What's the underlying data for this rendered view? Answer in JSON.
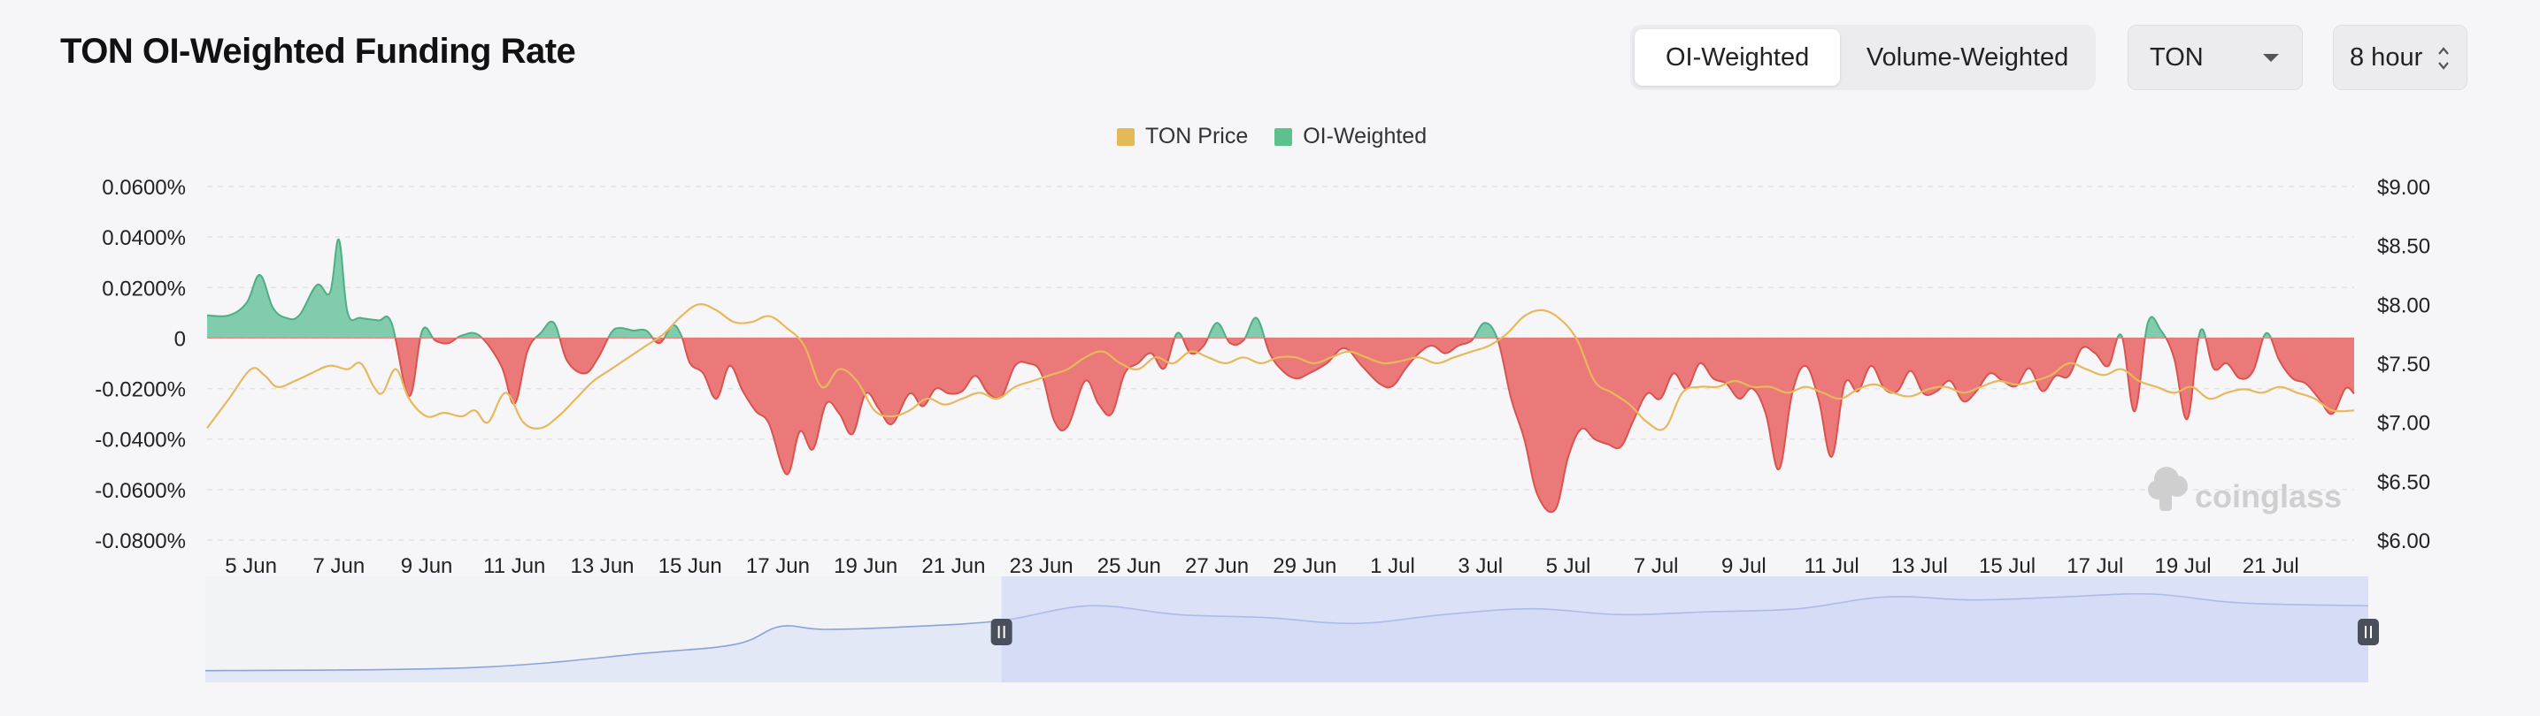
{
  "title": "TON OI-Weighted Funding Rate",
  "toggle": {
    "options": [
      "OI-Weighted",
      "Volume-Weighted"
    ],
    "active": 0
  },
  "symbol_select": {
    "value": "TON"
  },
  "interval_select": {
    "value": "8 hour"
  },
  "legend": [
    {
      "label": "TON Price",
      "color": "#e4b95a"
    },
    {
      "label": "OI-Weighted",
      "color": "#5fc08f"
    }
  ],
  "watermark": "coinglass",
  "colors": {
    "positive": "#6cc4a0",
    "negative": "#ea7272",
    "price": "#e8b85c",
    "navigator": "#8aa3d9"
  },
  "chart_data": {
    "type": "area",
    "title": "TON OI-Weighted Funding Rate",
    "y_left_ticks": [
      "0.0600%",
      "0.0400%",
      "0.0200%",
      "0",
      "-0.0200%",
      "-0.0400%",
      "-0.0600%",
      "-0.0800%"
    ],
    "y_right_ticks": [
      "$9.00",
      "$8.50",
      "$8.00",
      "$7.50",
      "$7.00",
      "$6.50",
      "$6.00"
    ],
    "x_ticks": [
      "5 Jun",
      "7 Jun",
      "9 Jun",
      "11 Jun",
      "13 Jun",
      "15 Jun",
      "17 Jun",
      "19 Jun",
      "21 Jun",
      "23 Jun",
      "25 Jun",
      "27 Jun",
      "29 Jun",
      "1 Jul",
      "3 Jul",
      "5 Jul",
      "7 Jul",
      "9 Jul",
      "11 Jul",
      "13 Jul",
      "15 Jul",
      "17 Jul",
      "19 Jul",
      "21 Jul"
    ],
    "ylim_left": [
      -0.08,
      0.06
    ],
    "ylim_right": [
      6.0,
      9.0
    ],
    "x_range_days": [
      4.0,
      52.9
    ],
    "grid": true,
    "legend_position": "top-center",
    "series": [
      {
        "name": "OI-Weighted",
        "unit": "%",
        "x": [
          4.0,
          4.5,
          4.9,
          5.2,
          5.5,
          5.8,
          6.1,
          6.5,
          6.8,
          7.0,
          7.2,
          7.5,
          7.9,
          8.2,
          8.6,
          8.9,
          9.2,
          9.5,
          9.8,
          10.2,
          10.7,
          11.0,
          11.3,
          11.6,
          11.9,
          12.2,
          12.6,
          12.9,
          13.2,
          13.4,
          13.7,
          14.0,
          14.3,
          14.6,
          14.8,
          15.0,
          15.3,
          15.6,
          15.9,
          16.2,
          16.5,
          16.8,
          17.2,
          17.5,
          17.8,
          18.1,
          18.4,
          18.7,
          19.0,
          19.3,
          19.6,
          20.0,
          20.3,
          20.6,
          20.9,
          21.2,
          21.5,
          21.8,
          22.1,
          22.4,
          22.7,
          23.0,
          23.3,
          23.6,
          24.0,
          24.3,
          24.6,
          24.9,
          25.2,
          25.5,
          25.8,
          26.1,
          26.4,
          26.7,
          27.0,
          27.3,
          27.6,
          27.9,
          28.2,
          28.5,
          28.8,
          29.1,
          29.5,
          29.9,
          30.3,
          30.7,
          31.0,
          31.3,
          31.6,
          31.9,
          32.2,
          32.5,
          32.8,
          33.1,
          33.4,
          33.7,
          34.0,
          34.3,
          34.7,
          35.0,
          35.3,
          35.6,
          35.9,
          36.2,
          36.5,
          36.8,
          37.1,
          37.4,
          37.7,
          38.0,
          38.3,
          38.6,
          38.9,
          39.2,
          39.5,
          39.8,
          40.1,
          40.4,
          40.7,
          41.0,
          41.3,
          41.6,
          41.9,
          42.2,
          42.5,
          42.8,
          43.1,
          43.4,
          43.7,
          44.0,
          44.3,
          44.6,
          44.9,
          45.2,
          45.5,
          45.8,
          46.1,
          46.4,
          46.7,
          47.0,
          47.3,
          47.6,
          47.9,
          48.2,
          48.5,
          48.8,
          49.1,
          49.4,
          49.7,
          50.0,
          50.3,
          50.6,
          50.9,
          51.2,
          51.5,
          51.8,
          52.1,
          52.4,
          52.7,
          52.9
        ],
        "values": [
          0.009,
          0.009,
          0.014,
          0.025,
          0.012,
          0.008,
          0.009,
          0.021,
          0.018,
          0.039,
          0.01,
          0.008,
          0.007,
          0.006,
          -0.023,
          0.003,
          -0.001,
          -0.002,
          0.001,
          0.001,
          -0.011,
          -0.026,
          -0.005,
          0.002,
          0.006,
          -0.009,
          -0.014,
          -0.008,
          0.002,
          0.004,
          0.003,
          0.003,
          -0.002,
          0.005,
          0.001,
          -0.01,
          -0.014,
          -0.024,
          -0.011,
          -0.021,
          -0.029,
          -0.034,
          -0.054,
          -0.037,
          -0.044,
          -0.026,
          -0.03,
          -0.038,
          -0.022,
          -0.028,
          -0.034,
          -0.022,
          -0.027,
          -0.02,
          -0.022,
          -0.021,
          -0.015,
          -0.022,
          -0.023,
          -0.011,
          -0.01,
          -0.014,
          -0.033,
          -0.035,
          -0.017,
          -0.026,
          -0.03,
          -0.014,
          -0.01,
          -0.006,
          -0.012,
          0.002,
          -0.006,
          -0.003,
          0.006,
          -0.002,
          -0.001,
          0.008,
          -0.006,
          -0.013,
          -0.016,
          -0.014,
          -0.01,
          -0.004,
          -0.011,
          -0.018,
          -0.019,
          -0.012,
          -0.006,
          -0.003,
          -0.006,
          -0.003,
          -0.001,
          0.006,
          -0.001,
          -0.024,
          -0.04,
          -0.062,
          -0.068,
          -0.047,
          -0.036,
          -0.04,
          -0.042,
          -0.043,
          -0.032,
          -0.022,
          -0.024,
          -0.014,
          -0.02,
          -0.01,
          -0.016,
          -0.018,
          -0.024,
          -0.02,
          -0.03,
          -0.052,
          -0.022,
          -0.011,
          -0.024,
          -0.047,
          -0.018,
          -0.021,
          -0.011,
          -0.02,
          -0.021,
          -0.013,
          -0.022,
          -0.021,
          -0.017,
          -0.025,
          -0.021,
          -0.014,
          -0.017,
          -0.019,
          -0.012,
          -0.021,
          -0.015,
          -0.015,
          -0.004,
          -0.006,
          -0.011,
          0.001,
          -0.029,
          0.006,
          0.003,
          -0.008,
          -0.032,
          0.003,
          -0.012,
          -0.01,
          -0.016,
          -0.013,
          0.002,
          -0.009,
          -0.016,
          -0.018,
          -0.024,
          -0.03,
          -0.02,
          -0.022
        ]
      },
      {
        "name": "TON Price",
        "unit": "$",
        "x": [
          4.0,
          4.5,
          5.0,
          5.3,
          5.6,
          6.0,
          6.4,
          6.8,
          7.2,
          7.5,
          7.8,
          8.0,
          8.3,
          8.6,
          9.0,
          9.4,
          9.8,
          10.1,
          10.4,
          10.8,
          11.2,
          11.6,
          12.0,
          12.4,
          12.8,
          13.2,
          13.6,
          14.0,
          14.4,
          14.8,
          15.2,
          15.6,
          16.0,
          16.4,
          16.8,
          17.2,
          17.6,
          18.0,
          18.4,
          18.8,
          19.2,
          19.6,
          20.0,
          20.4,
          20.8,
          21.2,
          21.6,
          22.0,
          22.4,
          22.8,
          23.2,
          23.6,
          24.0,
          24.4,
          24.8,
          25.2,
          25.6,
          26.0,
          26.4,
          26.8,
          27.2,
          27.6,
          28.0,
          28.4,
          28.8,
          29.2,
          29.6,
          30.0,
          30.4,
          30.8,
          31.2,
          31.6,
          32.0,
          32.4,
          32.8,
          33.2,
          33.6,
          34.0,
          34.4,
          34.8,
          35.2,
          35.6,
          36.0,
          36.4,
          36.8,
          37.2,
          37.6,
          38.0,
          38.4,
          38.8,
          39.2,
          39.6,
          40.0,
          40.4,
          40.8,
          41.2,
          41.6,
          42.0,
          42.4,
          42.8,
          43.2,
          43.6,
          44.0,
          44.4,
          44.8,
          45.2,
          45.6,
          46.0,
          46.4,
          46.8,
          47.2,
          47.6,
          48.0,
          48.4,
          48.8,
          49.2,
          49.6,
          50.0,
          50.4,
          50.8,
          51.2,
          51.6,
          52.0,
          52.4,
          52.9
        ],
        "values": [
          6.95,
          7.2,
          7.45,
          7.4,
          7.3,
          7.35,
          7.42,
          7.48,
          7.45,
          7.5,
          7.3,
          7.25,
          7.45,
          7.2,
          7.05,
          7.08,
          7.05,
          7.1,
          7.0,
          7.25,
          7.0,
          6.95,
          7.05,
          7.2,
          7.35,
          7.45,
          7.55,
          7.65,
          7.75,
          7.9,
          8.0,
          7.95,
          7.85,
          7.85,
          7.9,
          7.8,
          7.65,
          7.3,
          7.45,
          7.35,
          7.1,
          7.05,
          7.1,
          7.2,
          7.15,
          7.2,
          7.25,
          7.2,
          7.3,
          7.35,
          7.4,
          7.45,
          7.55,
          7.6,
          7.5,
          7.45,
          7.55,
          7.5,
          7.6,
          7.55,
          7.5,
          7.55,
          7.5,
          7.55,
          7.55,
          7.5,
          7.55,
          7.6,
          7.55,
          7.5,
          7.52,
          7.55,
          7.5,
          7.55,
          7.6,
          7.65,
          7.75,
          7.9,
          7.95,
          7.88,
          7.7,
          7.35,
          7.25,
          7.15,
          7.0,
          6.95,
          7.25,
          7.3,
          7.3,
          7.35,
          7.3,
          7.3,
          7.25,
          7.3,
          7.25,
          7.2,
          7.28,
          7.32,
          7.25,
          7.22,
          7.28,
          7.3,
          7.25,
          7.3,
          7.35,
          7.32,
          7.35,
          7.4,
          7.5,
          7.45,
          7.4,
          7.45,
          7.35,
          7.3,
          7.25,
          7.3,
          7.2,
          7.25,
          7.28,
          7.25,
          7.3,
          7.25,
          7.2,
          7.1,
          7.1
        ]
      }
    ],
    "navigator": {
      "x": [
        4.0,
        10.0,
        14.0,
        16.0,
        17.0,
        18.0,
        20.0,
        22.0,
        24.0,
        26.0,
        28.0,
        30.0,
        32.0,
        34.0,
        36.0,
        38.0,
        40.0,
        42.0,
        44.0,
        46.0,
        48.0,
        50.0,
        52.9
      ],
      "values": [
        7.0,
        7.05,
        7.3,
        7.45,
        7.75,
        7.7,
        7.75,
        7.85,
        8.1,
        7.95,
        7.9,
        7.8,
        7.95,
        8.05,
        7.95,
        8.0,
        8.05,
        8.25,
        8.2,
        8.25,
        8.3,
        8.15,
        8.1
      ],
      "selection": [
        22.0,
        52.9
      ]
    }
  }
}
